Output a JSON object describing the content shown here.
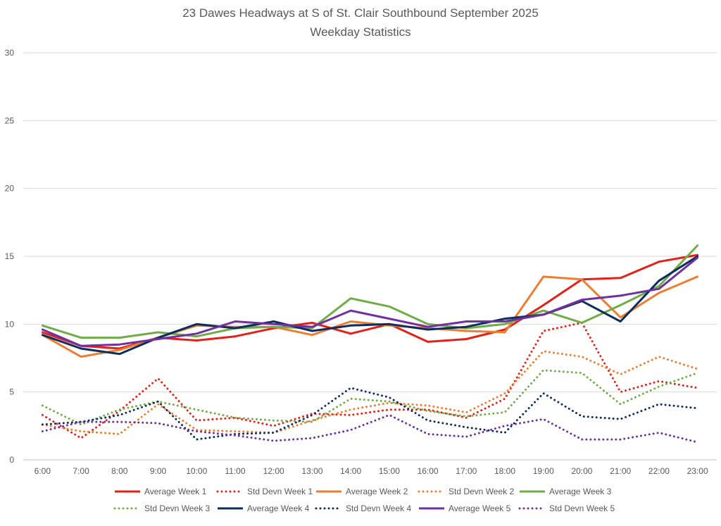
{
  "chart_data": {
    "type": "line",
    "title": "23 Dawes Headways at S of St. Clair Southbound September 2025",
    "subtitle": "Weekday Statistics",
    "xlabel": "",
    "ylabel": "",
    "categories": [
      "6:00",
      "7:00",
      "8:00",
      "9:00",
      "10:00",
      "11:00",
      "12:00",
      "13:00",
      "14:00",
      "15:00",
      "16:00",
      "17:00",
      "18:00",
      "19:00",
      "20:00",
      "21:00",
      "22:00",
      "23:00"
    ],
    "ylim": [
      0,
      30
    ],
    "yticks": [
      "0",
      "5",
      "10",
      "15",
      "20",
      "25",
      "30"
    ],
    "grid": "horizontal",
    "legend_position": "bottom",
    "series": [
      {
        "name": "Average Week 1",
        "color": "#e32119",
        "style": "solid",
        "values": [
          9.4,
          8.4,
          8.2,
          9.0,
          8.8,
          9.1,
          9.7,
          10.1,
          9.3,
          10.0,
          8.7,
          8.9,
          9.6,
          11.4,
          13.3,
          13.4,
          14.6,
          15.1
        ]
      },
      {
        "name": "Std Devn Week 1",
        "color": "#e32119",
        "style": "dotted",
        "values": [
          3.3,
          1.6,
          3.6,
          6.0,
          2.9,
          3.1,
          2.5,
          3.4,
          3.3,
          3.7,
          3.7,
          3.1,
          4.5,
          9.5,
          10.1,
          5.0,
          5.8,
          5.3
        ]
      },
      {
        "name": "Average Week 2",
        "color": "#ed7d31",
        "style": "solid",
        "values": [
          9.2,
          7.6,
          8.1,
          9.0,
          9.9,
          9.8,
          9.8,
          9.2,
          10.2,
          9.9,
          9.7,
          9.5,
          9.4,
          13.5,
          13.3,
          10.5,
          12.3,
          13.5
        ]
      },
      {
        "name": "Std Devn Week 2",
        "color": "#ed7d31",
        "style": "dotted",
        "values": [
          2.6,
          2.1,
          1.9,
          4.1,
          2.2,
          2.1,
          2.0,
          2.9,
          3.7,
          4.2,
          4.0,
          3.5,
          4.9,
          8.0,
          7.6,
          6.3,
          7.6,
          6.7
        ]
      },
      {
        "name": "Average Week 3",
        "color": "#70ad47",
        "style": "solid",
        "values": [
          9.9,
          9.0,
          9.0,
          9.4,
          9.1,
          9.7,
          9.8,
          9.7,
          11.9,
          11.3,
          10.0,
          9.7,
          10.0,
          11.0,
          10.1,
          11.4,
          12.8,
          15.8
        ]
      },
      {
        "name": "Std Devn Week 3",
        "color": "#70ad47",
        "style": "dotted",
        "values": [
          4.0,
          2.6,
          3.7,
          4.3,
          3.7,
          3.1,
          2.9,
          2.8,
          4.5,
          4.3,
          3.6,
          3.2,
          3.5,
          6.6,
          6.4,
          4.1,
          5.4,
          6.4
        ]
      },
      {
        "name": "Average Week 4",
        "color": "#0d2d5c",
        "style": "solid",
        "values": [
          9.2,
          8.2,
          7.8,
          9.0,
          10.0,
          9.7,
          10.2,
          9.5,
          9.9,
          10.0,
          9.6,
          9.8,
          10.4,
          10.7,
          11.7,
          10.2,
          13.2,
          15.0
        ]
      },
      {
        "name": "Std Devn Week 4",
        "color": "#0d2d5c",
        "style": "dotted",
        "values": [
          2.6,
          2.8,
          3.3,
          4.3,
          1.5,
          1.9,
          2.0,
          3.3,
          5.3,
          4.6,
          2.9,
          2.4,
          2.0,
          4.9,
          3.2,
          3.0,
          4.1,
          3.8
        ]
      },
      {
        "name": "Average Week 5",
        "color": "#7030a0",
        "style": "solid",
        "values": [
          9.6,
          8.4,
          8.5,
          8.9,
          9.3,
          10.2,
          10.0,
          9.8,
          11.0,
          10.4,
          9.8,
          10.2,
          10.2,
          10.7,
          11.8,
          12.1,
          12.6,
          14.9
        ]
      },
      {
        "name": "Std Devn Week 5",
        "color": "#7030a0",
        "style": "dotted",
        "values": [
          2.1,
          2.8,
          2.8,
          2.7,
          2.1,
          1.8,
          1.4,
          1.6,
          2.2,
          3.3,
          1.9,
          1.7,
          2.5,
          3.0,
          1.5,
          1.5,
          2.0,
          1.3
        ]
      }
    ]
  }
}
